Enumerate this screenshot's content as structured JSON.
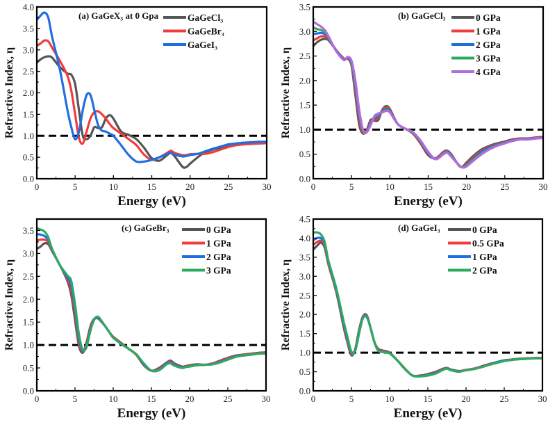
{
  "chart_data": [
    {
      "type": "line",
      "title": "(a) GaGeX₃ at 0 Gpa",
      "xlabel": "Energy (eV)",
      "ylabel": "Refractive Index, η",
      "xlim": [
        0,
        30
      ],
      "ylim": [
        0,
        4.0
      ],
      "xticks": [
        "0",
        "5",
        "10",
        "15",
        "20",
        "25",
        "30"
      ],
      "yticks": [
        "0.0",
        "0.5",
        "1.0",
        "1.5",
        "2.0",
        "2.5",
        "3.0",
        "3.5",
        "4.0"
      ],
      "reference_line": 1.0,
      "legend_position": "top-right",
      "x": [
        0,
        0.5,
        1,
        1.5,
        2,
        3,
        4,
        4.5,
        5,
        5.5,
        6,
        6.5,
        7,
        7.5,
        8,
        8.5,
        9,
        9.5,
        10,
        11,
        12,
        13,
        14,
        15,
        16,
        17,
        17.5,
        18,
        19,
        19.5,
        20,
        21,
        22,
        23,
        24,
        25,
        26,
        27,
        28,
        29,
        30
      ],
      "series": [
        {
          "name": "GaGeCl₃",
          "color": "#555555",
          "values": [
            2.7,
            2.78,
            2.83,
            2.85,
            2.82,
            2.6,
            2.45,
            2.42,
            2.2,
            1.6,
            1.0,
            0.92,
            1.0,
            1.2,
            1.18,
            1.2,
            1.4,
            1.48,
            1.4,
            1.1,
            1.02,
            0.92,
            0.72,
            0.48,
            0.42,
            0.55,
            0.6,
            0.52,
            0.28,
            0.27,
            0.35,
            0.5,
            0.62,
            0.68,
            0.72,
            0.77,
            0.8,
            0.82,
            0.83,
            0.85,
            0.86
          ]
        },
        {
          "name": "GaGeBr₃",
          "color": "#f03c3c",
          "values": [
            3.1,
            3.15,
            3.22,
            3.2,
            3.05,
            2.75,
            2.4,
            2.05,
            1.5,
            0.95,
            0.82,
            1.1,
            1.4,
            1.55,
            1.57,
            1.5,
            1.4,
            1.28,
            1.18,
            1.05,
            0.92,
            0.78,
            0.56,
            0.44,
            0.5,
            0.6,
            0.65,
            0.6,
            0.55,
            0.55,
            0.57,
            0.58,
            0.58,
            0.62,
            0.68,
            0.74,
            0.78,
            0.8,
            0.81,
            0.82,
            0.83
          ]
        },
        {
          "name": "GaGeI₃",
          "color": "#1f6fe0",
          "values": [
            3.7,
            3.8,
            3.87,
            3.75,
            3.3,
            2.55,
            1.6,
            1.2,
            0.92,
            1.1,
            1.6,
            1.95,
            1.95,
            1.6,
            1.25,
            1.12,
            1.1,
            1.05,
            1.0,
            0.78,
            0.55,
            0.4,
            0.4,
            0.44,
            0.5,
            0.58,
            0.6,
            0.56,
            0.52,
            0.53,
            0.55,
            0.58,
            0.64,
            0.7,
            0.75,
            0.8,
            0.82,
            0.84,
            0.85,
            0.86,
            0.86
          ]
        }
      ]
    },
    {
      "type": "line",
      "title": "(b) GaGeCl₃",
      "xlabel": "Energy (eV)",
      "ylabel": "Refractive Index, η",
      "xlim": [
        0,
        30
      ],
      "ylim": [
        0,
        3.5
      ],
      "xticks": [
        "0",
        "5",
        "10",
        "15",
        "20",
        "25",
        "30"
      ],
      "yticks": [
        "0.0",
        "0.5",
        "1.0",
        "1.5",
        "2.0",
        "2.5",
        "3.0",
        "3.5"
      ],
      "reference_line": 1.0,
      "legend_position": "top-right",
      "x": [
        0,
        0.5,
        1,
        1.5,
        2,
        3,
        4,
        4.5,
        5,
        5.5,
        6,
        6.5,
        7,
        7.5,
        8,
        8.5,
        9,
        9.5,
        10,
        11,
        12,
        13,
        14,
        15,
        16,
        17,
        17.5,
        18,
        19,
        19.5,
        20,
        21,
        22,
        23,
        24,
        25,
        26,
        27,
        28,
        29,
        30
      ],
      "series": [
        {
          "name": "0 GPa",
          "color": "#555555",
          "values": [
            2.7,
            2.78,
            2.83,
            2.85,
            2.82,
            2.62,
            2.45,
            2.45,
            2.3,
            1.7,
            1.1,
            0.92,
            1.0,
            1.2,
            1.18,
            1.2,
            1.4,
            1.48,
            1.42,
            1.12,
            1.02,
            0.92,
            0.72,
            0.48,
            0.42,
            0.55,
            0.57,
            0.5,
            0.27,
            0.25,
            0.33,
            0.48,
            0.6,
            0.67,
            0.72,
            0.76,
            0.8,
            0.82,
            0.82,
            0.84,
            0.85
          ]
        },
        {
          "name": "1 GPa",
          "color": "#f03c3c",
          "values": [
            2.82,
            2.86,
            2.9,
            2.9,
            2.85,
            2.62,
            2.44,
            2.46,
            2.34,
            1.8,
            1.2,
            0.94,
            0.98,
            1.17,
            1.2,
            1.24,
            1.4,
            1.45,
            1.4,
            1.12,
            1.02,
            0.93,
            0.74,
            0.5,
            0.41,
            0.54,
            0.56,
            0.48,
            0.27,
            0.24,
            0.3,
            0.45,
            0.57,
            0.65,
            0.7,
            0.75,
            0.79,
            0.81,
            0.81,
            0.83,
            0.84
          ]
        },
        {
          "name": "2 GPa",
          "color": "#1f6fe0",
          "values": [
            2.95,
            2.96,
            2.97,
            2.95,
            2.87,
            2.61,
            2.43,
            2.47,
            2.37,
            1.88,
            1.3,
            0.97,
            0.96,
            1.14,
            1.23,
            1.28,
            1.38,
            1.42,
            1.38,
            1.12,
            1.02,
            0.94,
            0.76,
            0.52,
            0.4,
            0.52,
            0.55,
            0.47,
            0.28,
            0.23,
            0.28,
            0.42,
            0.55,
            0.63,
            0.69,
            0.74,
            0.78,
            0.8,
            0.81,
            0.82,
            0.84
          ]
        },
        {
          "name": "3 GPa",
          "color": "#2eaa60",
          "values": [
            3.08,
            3.05,
            3.03,
            2.99,
            2.88,
            2.6,
            2.42,
            2.48,
            2.39,
            1.94,
            1.35,
            0.98,
            0.95,
            1.12,
            1.26,
            1.31,
            1.36,
            1.4,
            1.36,
            1.12,
            1.02,
            0.94,
            0.77,
            0.54,
            0.4,
            0.51,
            0.54,
            0.46,
            0.28,
            0.23,
            0.27,
            0.4,
            0.52,
            0.61,
            0.68,
            0.73,
            0.77,
            0.8,
            0.8,
            0.82,
            0.83
          ]
        },
        {
          "name": "4 GPa",
          "color": "#b36be0",
          "values": [
            3.2,
            3.15,
            3.1,
            3.03,
            2.9,
            2.6,
            2.42,
            2.48,
            2.4,
            2.0,
            1.4,
            1.0,
            0.95,
            1.1,
            1.28,
            1.33,
            1.35,
            1.38,
            1.35,
            1.12,
            1.02,
            0.95,
            0.78,
            0.55,
            0.4,
            0.5,
            0.53,
            0.45,
            0.28,
            0.23,
            0.25,
            0.38,
            0.5,
            0.6,
            0.67,
            0.72,
            0.77,
            0.8,
            0.8,
            0.82,
            0.83
          ]
        }
      ]
    },
    {
      "type": "line",
      "title": "(c) GaGeBr₃",
      "xlabel": "Energy (eV)",
      "ylabel": "Refractive Index, η",
      "xlim": [
        0,
        30
      ],
      "ylim": [
        0,
        3.75
      ],
      "xticks": [
        "0",
        "5",
        "10",
        "15",
        "20",
        "25",
        "30"
      ],
      "yticks": [
        "0.0",
        "0.5",
        "1.0",
        "1.5",
        "2.0",
        "2.5",
        "3.0",
        "3.5"
      ],
      "reference_line": 1.0,
      "legend_position": "top-right",
      "x": [
        0,
        0.5,
        1,
        1.5,
        2,
        3,
        4,
        4.5,
        5,
        5.5,
        6,
        6.5,
        7,
        7.5,
        8,
        8.5,
        9,
        9.5,
        10,
        11,
        12,
        13,
        14,
        15,
        16,
        17,
        17.5,
        18,
        19,
        19.5,
        20,
        21,
        22,
        23,
        24,
        25,
        26,
        27,
        28,
        29,
        30
      ],
      "series": [
        {
          "name": "0 GPa",
          "color": "#555555",
          "values": [
            3.1,
            3.15,
            3.22,
            3.2,
            3.05,
            2.75,
            2.4,
            2.1,
            1.55,
            1.0,
            0.83,
            1.05,
            1.4,
            1.57,
            1.58,
            1.5,
            1.4,
            1.28,
            1.18,
            1.05,
            0.92,
            0.79,
            0.56,
            0.44,
            0.5,
            0.62,
            0.66,
            0.6,
            0.53,
            0.54,
            0.56,
            0.58,
            0.57,
            0.6,
            0.66,
            0.72,
            0.77,
            0.79,
            0.81,
            0.83,
            0.84
          ]
        },
        {
          "name": "1 GPa",
          "color": "#f03c3c",
          "values": [
            3.28,
            3.3,
            3.3,
            3.25,
            3.07,
            2.75,
            2.44,
            2.2,
            1.67,
            1.08,
            0.85,
            1.02,
            1.37,
            1.56,
            1.59,
            1.5,
            1.4,
            1.28,
            1.17,
            1.04,
            0.92,
            0.79,
            0.57,
            0.44,
            0.48,
            0.61,
            0.64,
            0.58,
            0.52,
            0.53,
            0.55,
            0.57,
            0.57,
            0.59,
            0.65,
            0.71,
            0.76,
            0.78,
            0.8,
            0.82,
            0.83
          ]
        },
        {
          "name": "2 GPa",
          "color": "#1f6fe0",
          "values": [
            3.42,
            3.41,
            3.38,
            3.3,
            3.09,
            2.75,
            2.48,
            2.3,
            1.78,
            1.16,
            0.87,
            0.98,
            1.33,
            1.55,
            1.6,
            1.51,
            1.4,
            1.28,
            1.16,
            1.03,
            0.92,
            0.8,
            0.58,
            0.44,
            0.46,
            0.6,
            0.62,
            0.57,
            0.51,
            0.52,
            0.54,
            0.56,
            0.57,
            0.58,
            0.63,
            0.69,
            0.75,
            0.77,
            0.79,
            0.81,
            0.82
          ]
        },
        {
          "name": "3 GPa",
          "color": "#2eaa60",
          "values": [
            3.55,
            3.52,
            3.48,
            3.35,
            3.1,
            2.75,
            2.52,
            2.4,
            1.9,
            1.25,
            0.9,
            0.95,
            1.3,
            1.55,
            1.62,
            1.52,
            1.4,
            1.28,
            1.16,
            1.03,
            0.92,
            0.8,
            0.6,
            0.44,
            0.45,
            0.58,
            0.6,
            0.55,
            0.5,
            0.52,
            0.53,
            0.56,
            0.57,
            0.58,
            0.62,
            0.68,
            0.74,
            0.77,
            0.79,
            0.81,
            0.82
          ]
        }
      ]
    },
    {
      "type": "line",
      "title": "(d) GaGeI₃",
      "xlabel": "Energy (eV)",
      "ylabel": "Refractive Index, η",
      "xlim": [
        0,
        30
      ],
      "ylim": [
        0,
        4.5
      ],
      "xticks": [
        "0",
        "5",
        "10",
        "15",
        "20",
        "25",
        "30"
      ],
      "yticks": [
        "0.0",
        "0.5",
        "1.0",
        "1.5",
        "2.0",
        "2.5",
        "3.0",
        "3.5",
        "4.0",
        "4.5"
      ],
      "reference_line": 1.0,
      "legend_position": "top-right",
      "x": [
        0,
        0.5,
        1,
        1.5,
        2,
        3,
        4,
        4.5,
        5,
        5.5,
        6,
        6.5,
        7,
        7.5,
        8,
        8.5,
        9,
        9.5,
        10,
        11,
        12,
        13,
        14,
        15,
        16,
        17,
        17.5,
        18,
        19,
        19.5,
        20,
        21,
        22,
        23,
        24,
        25,
        26,
        27,
        28,
        29,
        30
      ],
      "series": [
        {
          "name": "0 GPa",
          "color": "#555555",
          "values": [
            3.7,
            3.8,
            3.88,
            3.75,
            3.3,
            2.6,
            1.65,
            1.25,
            0.93,
            1.1,
            1.6,
            1.95,
            1.98,
            1.65,
            1.28,
            1.1,
            1.06,
            1.04,
            1.0,
            0.8,
            0.58,
            0.4,
            0.4,
            0.44,
            0.5,
            0.58,
            0.6,
            0.56,
            0.52,
            0.53,
            0.55,
            0.58,
            0.64,
            0.7,
            0.75,
            0.8,
            0.82,
            0.84,
            0.85,
            0.86,
            0.86
          ]
        },
        {
          "name": "0.5 GPa",
          "color": "#f03c3c",
          "values": [
            3.82,
            3.9,
            3.93,
            3.8,
            3.33,
            2.63,
            1.7,
            1.3,
            0.95,
            1.08,
            1.57,
            1.94,
            1.97,
            1.65,
            1.28,
            1.08,
            1.05,
            1.03,
            0.99,
            0.8,
            0.58,
            0.4,
            0.39,
            0.43,
            0.49,
            0.57,
            0.6,
            0.55,
            0.51,
            0.53,
            0.55,
            0.58,
            0.63,
            0.69,
            0.74,
            0.79,
            0.82,
            0.84,
            0.85,
            0.86,
            0.86
          ]
        },
        {
          "name": "1 GPa",
          "color": "#1f6fe0",
          "values": [
            3.95,
            4.0,
            4.0,
            3.85,
            3.37,
            2.66,
            1.75,
            1.35,
            0.98,
            1.06,
            1.53,
            1.92,
            1.95,
            1.65,
            1.28,
            1.06,
            1.03,
            1.01,
            0.98,
            0.8,
            0.57,
            0.4,
            0.38,
            0.42,
            0.47,
            0.56,
            0.59,
            0.55,
            0.5,
            0.52,
            0.54,
            0.57,
            0.62,
            0.68,
            0.74,
            0.79,
            0.81,
            0.83,
            0.84,
            0.85,
            0.85
          ]
        },
        {
          "name": "2 GPa",
          "color": "#2eaa60",
          "values": [
            4.15,
            4.15,
            4.1,
            3.9,
            3.4,
            2.7,
            1.8,
            1.4,
            1.02,
            1.05,
            1.5,
            1.9,
            1.93,
            1.65,
            1.28,
            1.05,
            1.02,
            1.0,
            0.98,
            0.8,
            0.57,
            0.4,
            0.38,
            0.4,
            0.45,
            0.55,
            0.58,
            0.54,
            0.5,
            0.52,
            0.54,
            0.57,
            0.62,
            0.68,
            0.73,
            0.78,
            0.81,
            0.83,
            0.84,
            0.85,
            0.85
          ]
        }
      ]
    }
  ]
}
